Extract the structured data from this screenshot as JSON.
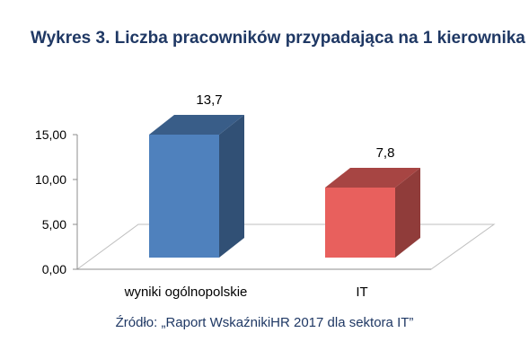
{
  "chart_data": {
    "type": "bar",
    "title": "Wykres 3. Liczba pracowników przypadająca na 1 kierownika",
    "categories": [
      "wyniki ogólnopolskie",
      "IT"
    ],
    "values": [
      13.7,
      7.8
    ],
    "value_labels": [
      "13,7",
      "7,8"
    ],
    "bar_colors": [
      "#4f81bd",
      "#e8605d"
    ],
    "ylim": [
      0,
      15
    ],
    "y_ticks": [
      0,
      5,
      10,
      15
    ],
    "y_tick_labels": [
      "0,00",
      "5,00",
      "10,00",
      "15,00"
    ],
    "xlabel": "",
    "ylabel": "",
    "grid": false,
    "style": "3d-column"
  },
  "source_text": "Źródło: „Raport WskaźnikiHR 2017 dla sektora IT”"
}
